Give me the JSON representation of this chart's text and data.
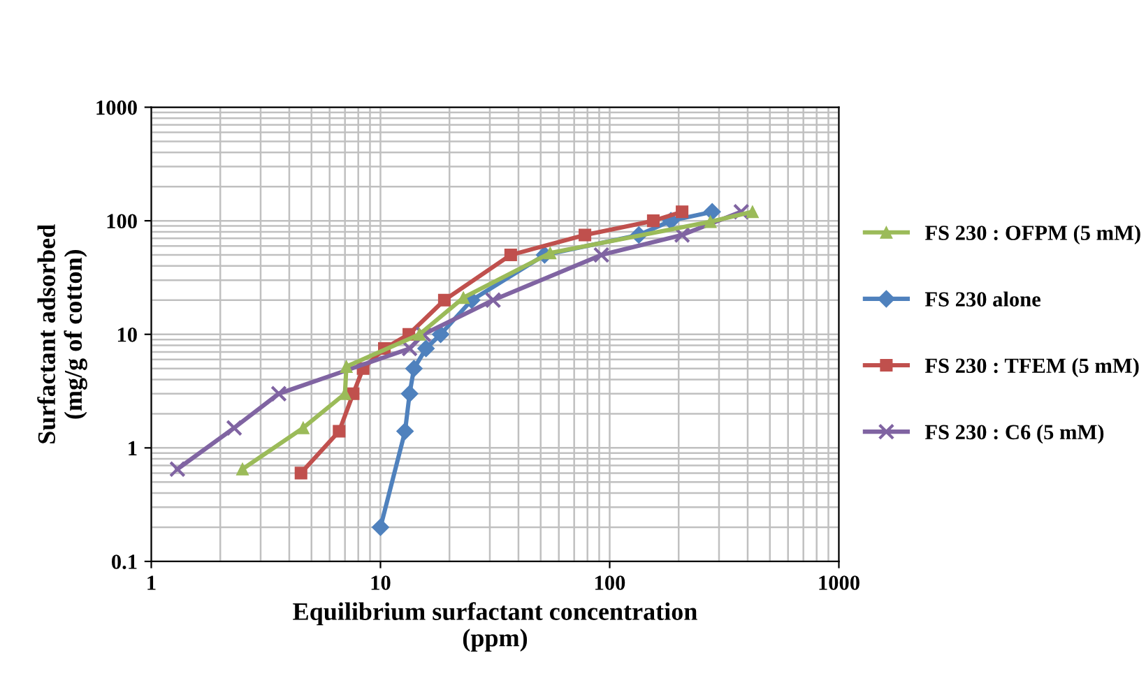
{
  "chart_data": {
    "type": "line",
    "xlabel": "Equilibrium surfactant concentration\n(ppm)",
    "ylabel": "Surfactant adsorbed\n(mg/g of cotton)",
    "log": "xy",
    "xlim": [
      1,
      1000
    ],
    "ylim": [
      0.1,
      1000
    ],
    "xticks": [
      1,
      10,
      100,
      1000
    ],
    "yticks": [
      0.1,
      1,
      10,
      100,
      1000
    ],
    "grid": true,
    "legend": "right",
    "series": [
      {
        "name": "FS 230 : OFPM (5 mM)",
        "color": "#9bbb59",
        "marker": "triangle",
        "x": [
          2.5,
          4.6,
          7,
          7.1,
          14.8,
          23,
          55,
          275,
          420
        ],
        "values": [
          0.65,
          1.5,
          3,
          5.2,
          10,
          21,
          52,
          98,
          120
        ]
      },
      {
        "name": "FS 230 alone",
        "color": "#4f81bd",
        "marker": "diamond",
        "x": [
          10,
          12.8,
          13.4,
          14,
          15.8,
          18.3,
          25,
          52,
          134,
          185,
          280
        ],
        "values": [
          0.2,
          1.4,
          3,
          5,
          7.5,
          10,
          20,
          50,
          75,
          100,
          120
        ]
      },
      {
        "name": "FS 230 : TFEM (5 mM)",
        "color": "#c0504d",
        "marker": "square",
        "x": [
          4.5,
          6.6,
          7.6,
          8.4,
          10.4,
          13.3,
          19,
          37,
          78,
          155,
          207
        ],
        "values": [
          0.6,
          1.4,
          3,
          5,
          7.5,
          10,
          20,
          50,
          75,
          100,
          120
        ]
      },
      {
        "name": "FS 230 : C6 (5 mM)",
        "color": "#8064a2",
        "marker": "cross",
        "x": [
          1.3,
          2.3,
          3.6,
          13.4,
          15.4,
          31,
          92,
          207,
          375
        ],
        "values": [
          0.65,
          1.5,
          3,
          7.5,
          10,
          20,
          50,
          75,
          120
        ]
      }
    ]
  }
}
